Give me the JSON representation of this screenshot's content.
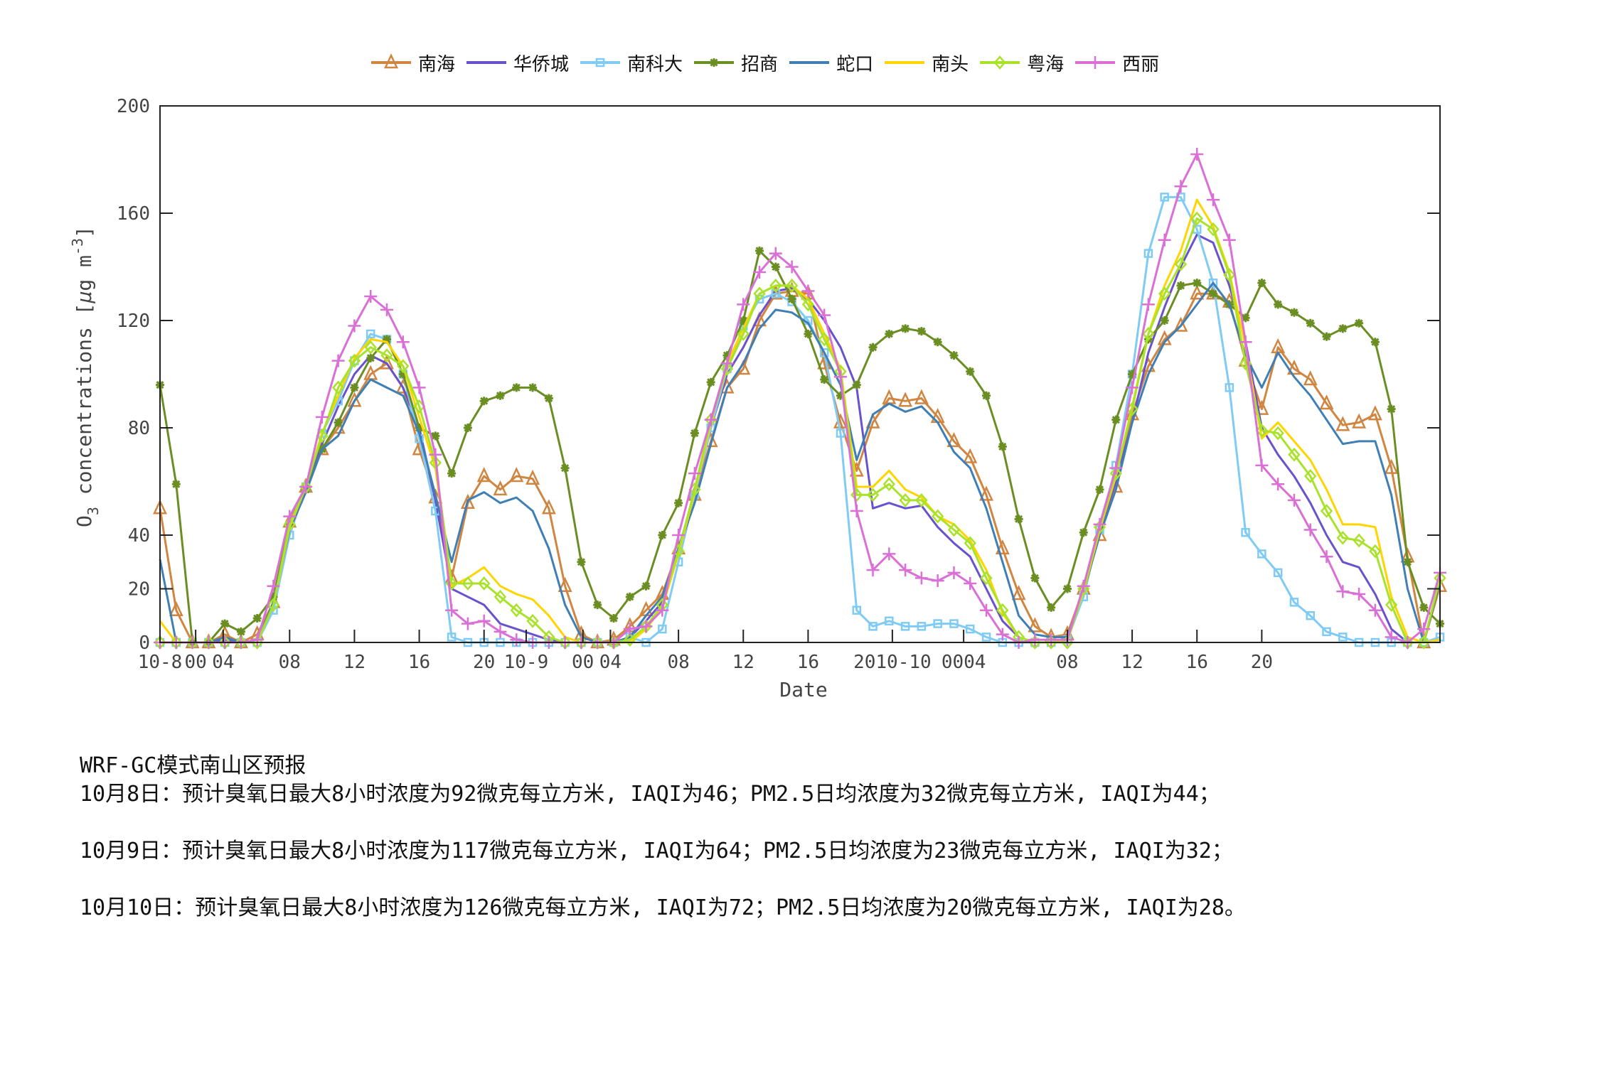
{
  "legend": [
    {
      "name": "南海",
      "color": "#D08540",
      "marker": "triangle"
    },
    {
      "name": "华侨城",
      "color": "#6A52CC",
      "marker": "none"
    },
    {
      "name": "南科大",
      "color": "#7FCBF5",
      "marker": "square"
    },
    {
      "name": "招商",
      "color": "#6B8E23",
      "marker": "star"
    },
    {
      "name": "蛇口",
      "color": "#3F7FB5",
      "marker": "none"
    },
    {
      "name": "南头",
      "color": "#FFD400",
      "marker": "none"
    },
    {
      "name": "粤海",
      "color": "#A8E22A",
      "marker": "diamond"
    },
    {
      "name": "西丽",
      "color": "#DA70D6",
      "marker": "plus"
    }
  ],
  "chart_data": {
    "type": "line",
    "title": "",
    "xlabel": "Date",
    "ylabel": "O3 concentrations [μg m-3]",
    "ylim": [
      0,
      200
    ],
    "yticks": [
      0,
      20,
      40,
      80,
      120,
      160,
      200
    ],
    "grid": false,
    "legend_position": "top",
    "x_tick_labels": [
      {
        "index": 0,
        "label": "10-8"
      },
      {
        "index": 2.2,
        "label": "00"
      },
      {
        "index": 3.9,
        "label": "04"
      },
      {
        "index": 8,
        "label": "08"
      },
      {
        "index": 12,
        "label": "12"
      },
      {
        "index": 16,
        "label": "16"
      },
      {
        "index": 20,
        "label": "20"
      },
      {
        "index": 22.6,
        "label": "10-9"
      },
      {
        "index": 26.1,
        "label": "00"
      },
      {
        "index": 27.8,
        "label": "04"
      },
      {
        "index": 32,
        "label": "08"
      },
      {
        "index": 36,
        "label": "12"
      },
      {
        "index": 40,
        "label": "16"
      },
      {
        "index": 45.2,
        "label": "2010-10"
      },
      {
        "index": 49.6,
        "label": "0004"
      },
      {
        "index": 56,
        "label": "08"
      },
      {
        "index": 60,
        "label": "12"
      },
      {
        "index": 64,
        "label": "16"
      },
      {
        "index": 68,
        "label": "20"
      }
    ],
    "x_count": 80,
    "series": [
      {
        "name": "南海",
        "values": [
          50,
          12,
          0,
          0,
          3,
          0,
          3,
          15,
          45,
          58,
          72,
          80,
          90,
          100,
          104,
          95,
          72,
          54,
          24,
          52,
          62,
          57,
          62,
          61,
          50,
          21,
          3,
          0,
          1,
          6,
          12,
          18,
          35,
          55,
          75,
          95,
          102,
          120,
          130,
          131,
          130,
          104,
          82,
          64,
          82,
          91,
          90,
          91,
          84,
          75,
          69,
          55,
          35,
          18,
          6,
          2,
          3,
          20,
          40,
          58,
          85,
          103,
          113,
          118,
          130,
          130,
          127,
          105,
          87,
          110,
          102,
          98,
          89,
          81,
          82,
          85,
          65,
          32,
          0,
          21
        ]
      },
      {
        "name": "华侨城",
        "values": [
          0,
          0,
          0,
          0,
          1,
          0,
          0,
          14,
          42,
          57,
          74,
          88,
          100,
          107,
          104,
          95,
          80,
          53,
          20,
          17,
          14,
          7,
          5,
          3,
          1,
          0,
          0,
          0,
          0,
          2,
          8,
          15,
          35,
          55,
          80,
          100,
          110,
          122,
          131,
          132,
          128,
          120,
          110,
          95,
          50,
          52,
          50,
          51,
          43,
          37,
          32,
          20,
          8,
          2,
          0,
          0,
          1,
          20,
          42,
          60,
          82,
          108,
          125,
          140,
          152,
          149,
          133,
          112,
          80,
          70,
          62,
          52,
          40,
          30,
          28,
          18,
          5,
          0,
          0,
          1
        ]
      },
      {
        "name": "南科大",
        "values": [
          0,
          0,
          0,
          0,
          0,
          0,
          0,
          12,
          40,
          58,
          78,
          90,
          105,
          115,
          113,
          100,
          76,
          49,
          2,
          0,
          0,
          0,
          0,
          0,
          0,
          0,
          0,
          0,
          0,
          2,
          0,
          5,
          30,
          55,
          80,
          102,
          118,
          128,
          130,
          127,
          120,
          108,
          78,
          12,
          6,
          8,
          6,
          6,
          7,
          7,
          5,
          2,
          0,
          0,
          0,
          0,
          1,
          17,
          42,
          66,
          100,
          145,
          166,
          166,
          154,
          134,
          95,
          41,
          33,
          26,
          15,
          10,
          4,
          2,
          0,
          0,
          0,
          0,
          0,
          2
        ]
      },
      {
        "name": "招商",
        "values": [
          96,
          59,
          0,
          0,
          7,
          4,
          9,
          17,
          44,
          57,
          72,
          82,
          95,
          106,
          113,
          100,
          80,
          77,
          63,
          80,
          90,
          92,
          95,
          95,
          91,
          65,
          30,
          14,
          9,
          17,
          21,
          40,
          52,
          78,
          97,
          107,
          120,
          146,
          140,
          128,
          115,
          98,
          92,
          96,
          110,
          115,
          117,
          116,
          112,
          107,
          101,
          92,
          73,
          46,
          24,
          13,
          20,
          41,
          57,
          83,
          100,
          113,
          120,
          133,
          134,
          130,
          126,
          121,
          134,
          126,
          123,
          119,
          114,
          117,
          119,
          112,
          87,
          30,
          13,
          7
        ]
      },
      {
        "name": "蛇口",
        "values": [
          31,
          0,
          0,
          0,
          2,
          0,
          0,
          15,
          42,
          56,
          72,
          77,
          90,
          98,
          95,
          92,
          78,
          55,
          30,
          53,
          56,
          52,
          54,
          49,
          35,
          14,
          2,
          0,
          0,
          2,
          10,
          17,
          35,
          52,
          74,
          95,
          104,
          117,
          124,
          123,
          119,
          108,
          96,
          68,
          85,
          89,
          86,
          88,
          82,
          71,
          65,
          50,
          30,
          10,
          3,
          2,
          2,
          19,
          40,
          57,
          82,
          100,
          112,
          118,
          126,
          134,
          126,
          107,
          95,
          108,
          99,
          92,
          83,
          74,
          75,
          75,
          55,
          20,
          0,
          23
        ]
      },
      {
        "name": "南头",
        "values": [
          8,
          0,
          0,
          0,
          0,
          0,
          0,
          14,
          43,
          58,
          78,
          92,
          106,
          113,
          112,
          103,
          84,
          65,
          21,
          24,
          28,
          21,
          18,
          16,
          10,
          2,
          0,
          0,
          0,
          0,
          5,
          13,
          33,
          56,
          82,
          104,
          117,
          130,
          133,
          133,
          128,
          115,
          102,
          58,
          58,
          64,
          57,
          54,
          47,
          44,
          38,
          27,
          11,
          2,
          0,
          0,
          1,
          19,
          42,
          62,
          88,
          115,
          133,
          146,
          165,
          155,
          138,
          110,
          76,
          82,
          75,
          68,
          57,
          44,
          44,
          43,
          17,
          2,
          0,
          1
        ]
      },
      {
        "name": "粤海",
        "values": [
          0,
          0,
          0,
          0,
          0,
          0,
          0,
          14,
          44,
          58,
          77,
          95,
          105,
          110,
          107,
          103,
          88,
          67,
          22,
          22,
          22,
          17,
          12,
          8,
          2,
          0,
          0,
          0,
          0,
          1,
          6,
          14,
          34,
          57,
          83,
          102,
          115,
          130,
          133,
          133,
          126,
          113,
          101,
          55,
          55,
          59,
          53,
          53,
          47,
          42,
          37,
          24,
          12,
          2,
          0,
          0,
          0,
          20,
          43,
          63,
          87,
          115,
          130,
          141,
          158,
          154,
          137,
          104,
          79,
          78,
          70,
          62,
          49,
          39,
          38,
          34,
          14,
          0,
          0,
          24
        ]
      },
      {
        "name": "西丽",
        "values": [
          0,
          0,
          0,
          0,
          0,
          0,
          1,
          21,
          47,
          58,
          84,
          105,
          118,
          129,
          124,
          112,
          95,
          70,
          12,
          7,
          8,
          4,
          1,
          0,
          0,
          0,
          0,
          0,
          0,
          5,
          6,
          12,
          40,
          63,
          83,
          104,
          126,
          138,
          145,
          140,
          131,
          122,
          99,
          49,
          27,
          33,
          27,
          24,
          23,
          26,
          22,
          12,
          3,
          0,
          1,
          1,
          1,
          21,
          44,
          65,
          95,
          126,
          150,
          170,
          182,
          165,
          150,
          112,
          66,
          59,
          53,
          42,
          32,
          19,
          18,
          12,
          2,
          0,
          5,
          26
        ]
      }
    ]
  },
  "axis": {
    "y_ticks": [
      "0",
      "20",
      "40",
      "80",
      "120",
      "160",
      "200"
    ],
    "x_label": "Date",
    "y_label_main": "O",
    "y_label_sub": "3",
    "y_label_rest": " concentrations [",
    "y_label_mu": "μ",
    "y_label_unit": "g m",
    "y_label_sup": "-3",
    "y_label_close": "]"
  },
  "notes": {
    "title": "WRF-GC模式南山区预报",
    "lines": [
      "10月8日：预计臭氧日最大8小时浓度为92微克每立方米, IAQI为46；PM2.5日均浓度为32微克每立方米, IAQI为44；",
      "10月9日：预计臭氧日最大8小时浓度为117微克每立方米, IAQI为64；PM2.5日均浓度为23微克每立方米, IAQI为32；",
      "10月10日：预计臭氧日最大8小时浓度为126微克每立方米, IAQI为72；PM2.5日均浓度为20微克每立方米, IAQI为28。"
    ]
  }
}
